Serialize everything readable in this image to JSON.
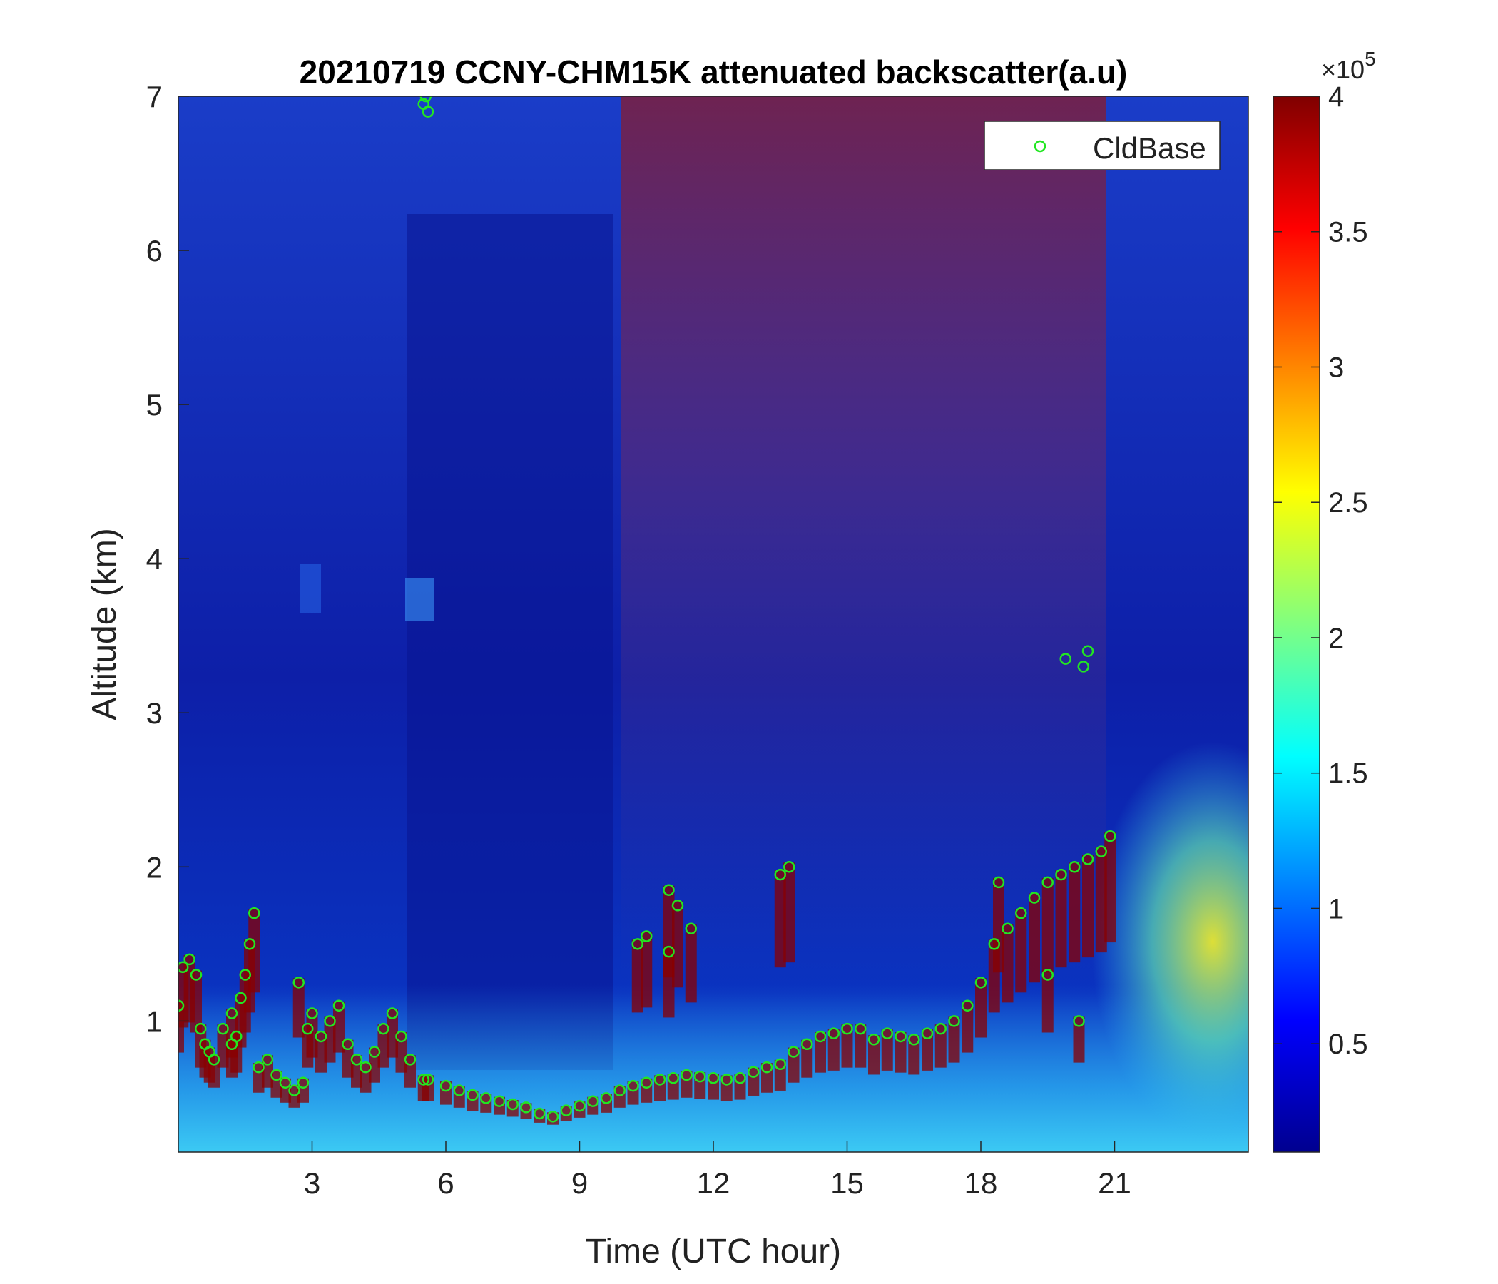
{
  "chart_data": {
    "type": "heatmap",
    "title": "20210719 CCNY-CHM15K attenuated backscatter(a.u)",
    "xlabel": "Time (UTC hour)",
    "ylabel": "Altitude (km)",
    "xlim": [
      0,
      24
    ],
    "ylim": [
      0.15,
      7
    ],
    "xticks": [
      3,
      6,
      9,
      12,
      15,
      18,
      21
    ],
    "yticks": [
      1,
      2,
      3,
      4,
      5,
      6,
      7
    ],
    "colorbar": {
      "colormap": "jet",
      "clim": [
        0.1,
        4
      ],
      "ticks": [
        0.5,
        1,
        1.5,
        2,
        2.5,
        3,
        3.5,
        4
      ],
      "exponent_label": "×10",
      "exponent_power": "5"
    },
    "legend": {
      "location": "top-right",
      "entries": [
        "CldBase"
      ]
    },
    "series": [
      {
        "name": "CldBase",
        "marker": "open-circle",
        "color": "#22e622",
        "x": [
          0.0,
          0.1,
          0.25,
          0.4,
          0.5,
          0.6,
          0.7,
          0.8,
          1.0,
          1.2,
          1.4,
          1.5,
          1.6,
          1.7,
          1.8,
          2.0,
          2.2,
          2.4,
          2.6,
          2.7,
          2.9,
          3.0,
          3.2,
          3.4,
          3.6,
          3.8,
          4.0,
          4.2,
          4.4,
          4.6,
          4.8,
          5.0,
          5.2,
          5.5,
          5.6,
          6.0,
          6.3,
          6.6,
          6.9,
          7.2,
          7.5,
          7.8,
          8.1,
          8.4,
          8.7,
          9.0,
          9.3,
          9.6,
          9.9,
          10.2,
          10.5,
          10.8,
          11.1,
          11.4,
          11.7,
          12.0,
          12.3,
          12.6,
          12.9,
          13.2,
          13.5,
          13.8,
          14.1,
          14.4,
          14.7,
          15.0,
          15.3,
          15.6,
          15.9,
          16.2,
          16.5,
          16.8,
          17.1,
          17.4,
          17.7,
          18.0,
          18.3,
          18.6,
          18.9,
          19.2,
          19.5,
          19.8,
          20.1,
          20.4,
          20.7,
          20.9,
          10.3,
          10.5,
          11.0,
          11.2,
          11.5,
          11.0,
          13.5,
          13.7,
          19.9,
          20.3,
          20.4,
          5.5,
          5.6,
          5.55,
          1.2,
          1.3,
          2.8,
          19.5,
          18.4,
          20.2
        ],
        "y": [
          1.1,
          1.35,
          1.4,
          1.3,
          0.95,
          0.85,
          0.8,
          0.75,
          0.95,
          1.05,
          1.15,
          1.3,
          1.5,
          1.7,
          0.7,
          0.75,
          0.65,
          0.6,
          0.55,
          1.25,
          0.95,
          1.05,
          0.9,
          1.0,
          1.1,
          0.85,
          0.75,
          0.7,
          0.8,
          0.95,
          1.05,
          0.9,
          0.75,
          0.62,
          0.62,
          0.58,
          0.55,
          0.52,
          0.5,
          0.48,
          0.46,
          0.44,
          0.4,
          0.38,
          0.42,
          0.45,
          0.48,
          0.5,
          0.55,
          0.58,
          0.6,
          0.62,
          0.63,
          0.65,
          0.64,
          0.63,
          0.62,
          0.63,
          0.67,
          0.7,
          0.72,
          0.8,
          0.85,
          0.9,
          0.92,
          0.95,
          0.95,
          0.88,
          0.92,
          0.9,
          0.88,
          0.92,
          0.95,
          1.0,
          1.1,
          1.25,
          1.5,
          1.6,
          1.7,
          1.8,
          1.9,
          1.95,
          2.0,
          2.05,
          2.1,
          2.2,
          1.5,
          1.55,
          1.85,
          1.75,
          1.6,
          1.45,
          1.95,
          2.0,
          3.35,
          3.3,
          3.4,
          6.95,
          6.9,
          7.0,
          0.85,
          0.9,
          0.6,
          1.3,
          1.9,
          1.0
        ]
      }
    ]
  }
}
